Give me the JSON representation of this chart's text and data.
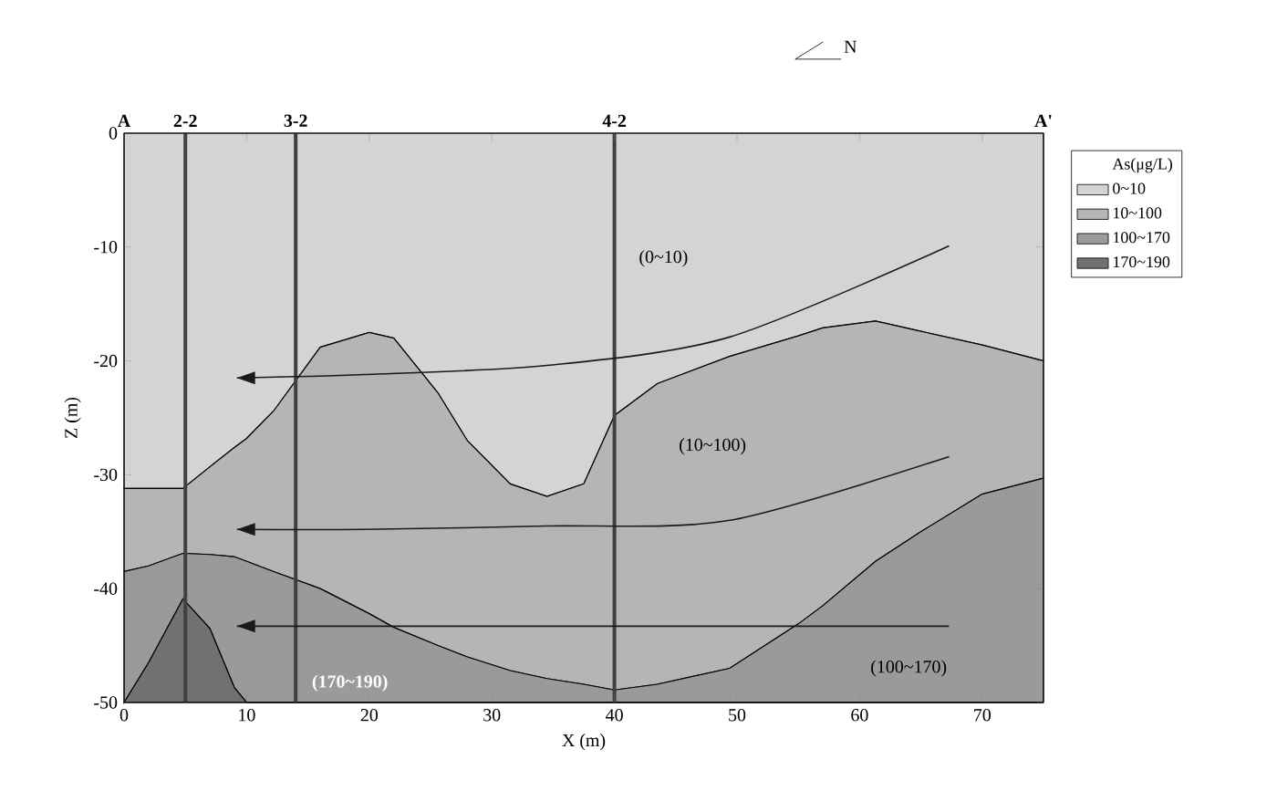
{
  "chart_data": {
    "type": "area",
    "xlabel": "X (m)",
    "ylabel": "Z (m)",
    "legend_title": "As(μg/L)",
    "legend": "right",
    "xlim": [
      0,
      75
    ],
    "ylim": [
      -50,
      0
    ],
    "xticks": [
      0,
      10,
      20,
      30,
      40,
      50,
      60,
      70
    ],
    "yticks": [
      0,
      -10,
      -20,
      -30,
      -40,
      -50
    ],
    "stacked": true,
    "x": [
      0,
      2,
      4.8,
      7,
      9,
      10,
      12.2,
      16,
      20,
      22,
      25.6,
      28,
      31.5,
      34.5,
      37.5,
      40,
      43.5,
      49.4,
      55,
      57,
      61.3,
      65,
      70,
      75
    ],
    "series": [
      {
        "name": "0~10",
        "color": "#d4d4d4",
        "values": [
          -31.2,
          -31.2,
          -31.2,
          -29.3,
          -27.6,
          -26.8,
          -24.4,
          -18.8,
          -17.5,
          -18,
          -22.8,
          -27,
          -30.8,
          -31.9,
          -30.8,
          -24.8,
          -22,
          -19.6,
          -17.8,
          -17.1,
          -16.5,
          -17.4,
          -18.6,
          -20
        ]
      },
      {
        "name": "10~100",
        "color": "#b5b5b5",
        "values": [
          -7.3,
          -6.8,
          -5.7,
          -7.7,
          -9.6,
          -10.8,
          -14.1,
          -21.2,
          -24.7,
          -25.4,
          -22.2,
          -19,
          -16.4,
          -16,
          -17.6,
          -24.1,
          -26.4,
          -27.4,
          -25.3,
          -24.4,
          -21.1,
          -17.6,
          -13.1,
          -10.3
        ]
      },
      {
        "name": "100~170",
        "color": "#9a9a9a",
        "values": [
          -11.5,
          -8.5,
          -4,
          -6.5,
          -11.5,
          -12.4,
          -11.5,
          -10,
          -7.8,
          -6.6,
          -5,
          -4,
          -2.8,
          -2.1,
          -1.6,
          -1.1,
          -1.6,
          -3,
          -6.9,
          -8.5,
          -12.4,
          -15,
          -18.3,
          -19.7
        ]
      },
      {
        "name": "170~190",
        "color": "#717171",
        "values": [
          0,
          -3.5,
          -9.1,
          -6.5,
          -1.3,
          0,
          0,
          0,
          0,
          0,
          0,
          0,
          0,
          0,
          0,
          0,
          0,
          0,
          0,
          0,
          0,
          0,
          0,
          0
        ]
      },
      {
        "type": "line",
        "color": "#1a1a1a",
        "x": [
          67.3,
          49.4,
          34.5,
          19.6,
          9.2
        ],
        "values": [
          -9.9,
          -17.9,
          -20.4,
          -21.2,
          -21.5
        ]
      },
      {
        "type": "line",
        "color": "#1a1a1a",
        "x": [
          67.3,
          49.4,
          34.5,
          19.6,
          9.2
        ],
        "values": [
          -28.4,
          -34,
          -34.5,
          -34.8,
          -34.8
        ]
      },
      {
        "type": "line",
        "color": "#1a1a1a",
        "x": [
          67.3,
          9.2
        ],
        "values": [
          -43.3,
          -43.3
        ]
      }
    ],
    "ref_lines": [
      {
        "axis": "x",
        "value": 5
      },
      {
        "axis": "x",
        "value": 14
      },
      {
        "axis": "x",
        "value": 40
      }
    ],
    "annotations": [
      "(0~10)",
      "(10~100)",
      "(100~170)",
      "(170~190)",
      "N",
      "A",
      "A'",
      "2-2",
      "3-2",
      "4-2"
    ]
  }
}
